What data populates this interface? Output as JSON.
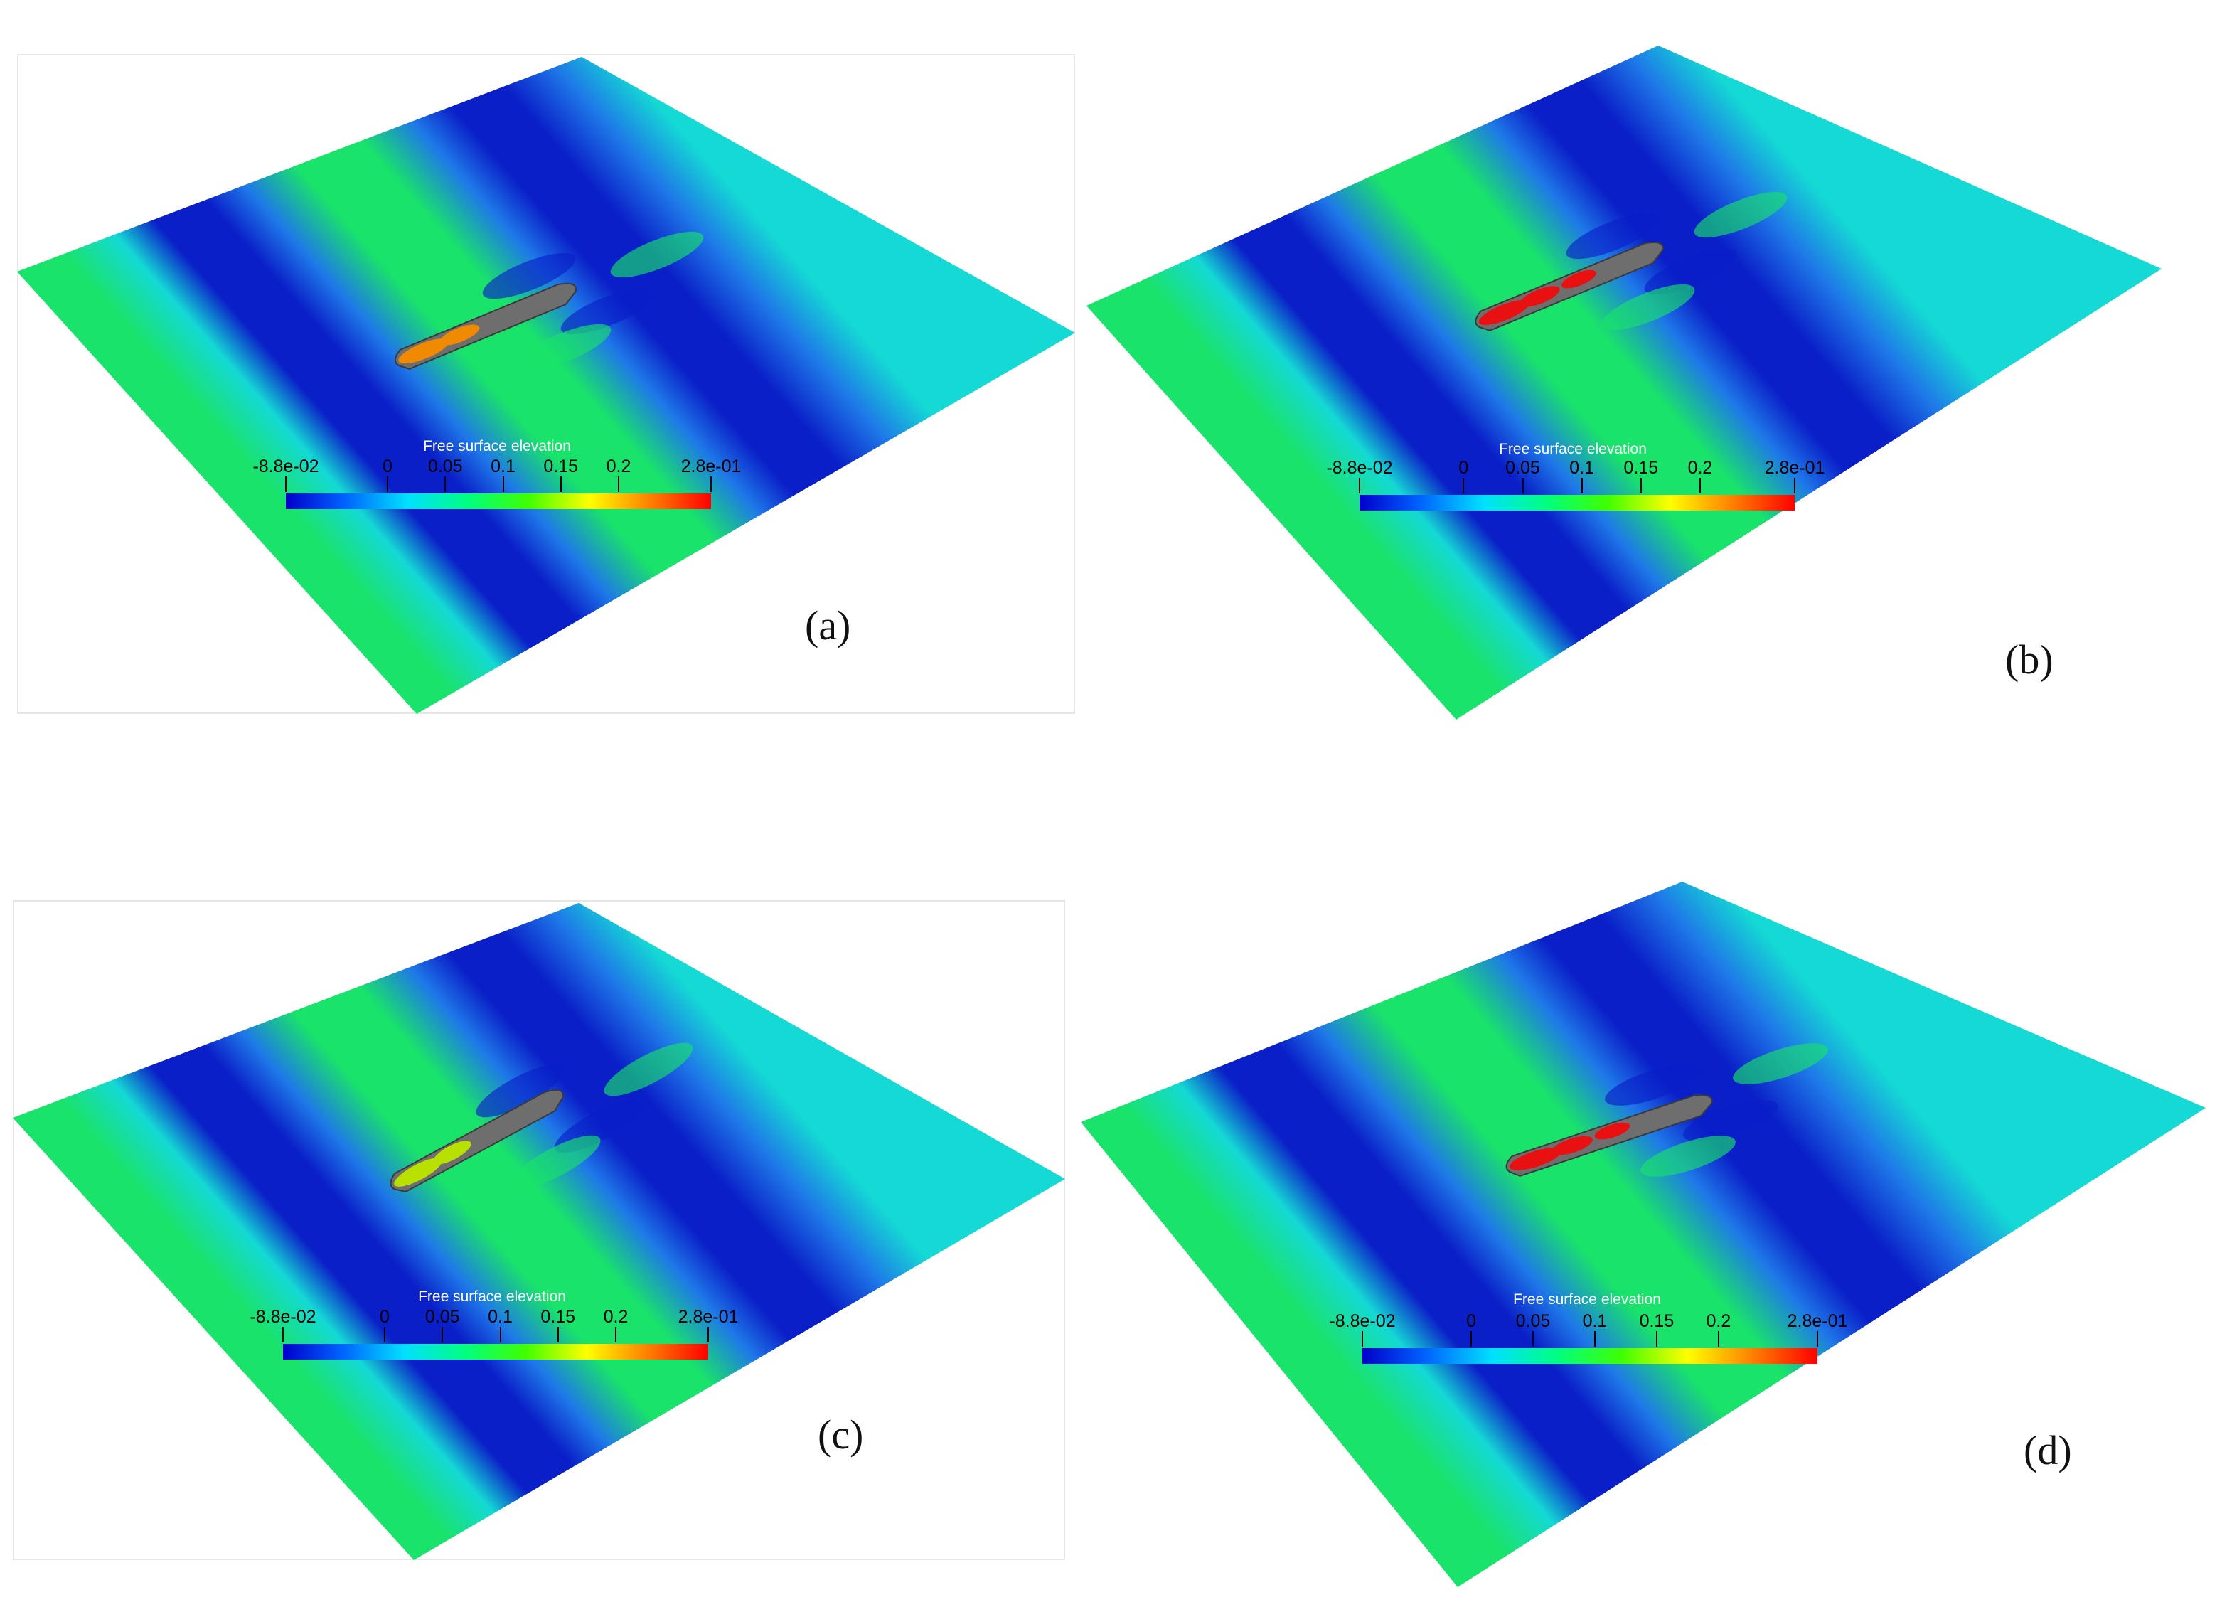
{
  "colorbar": {
    "title": "Free surface elevation",
    "ticks": [
      "-8.8e-02",
      "0",
      "0.05",
      "0.1",
      "0.15",
      "0.2",
      "2.8e-01"
    ],
    "tick_values": [
      -0.088,
      0,
      0.05,
      0.1,
      0.15,
      0.2,
      0.28
    ],
    "range": [
      -0.088,
      0.28
    ],
    "colormap": [
      "#0000cc",
      "#0066ff",
      "#00e0ff",
      "#00ff80",
      "#40ff00",
      "#ffff00",
      "#ff8000",
      "#ff0000"
    ]
  },
  "water_colors": {
    "trough": "#0a1fc8",
    "mid_blue": "#1e78e8",
    "mid": "#14d9d4",
    "crest": "#19e36a"
  },
  "hull_color": "#6e6e6e",
  "panels": [
    {
      "label": "(a)",
      "deck_patch_color": "#f08a00"
    },
    {
      "label": "(b)",
      "deck_patch_color": "#e81010"
    },
    {
      "label": "(c)",
      "deck_patch_color": "#b8e000"
    },
    {
      "label": "(d)",
      "deck_patch_color": "#e81010"
    }
  ]
}
